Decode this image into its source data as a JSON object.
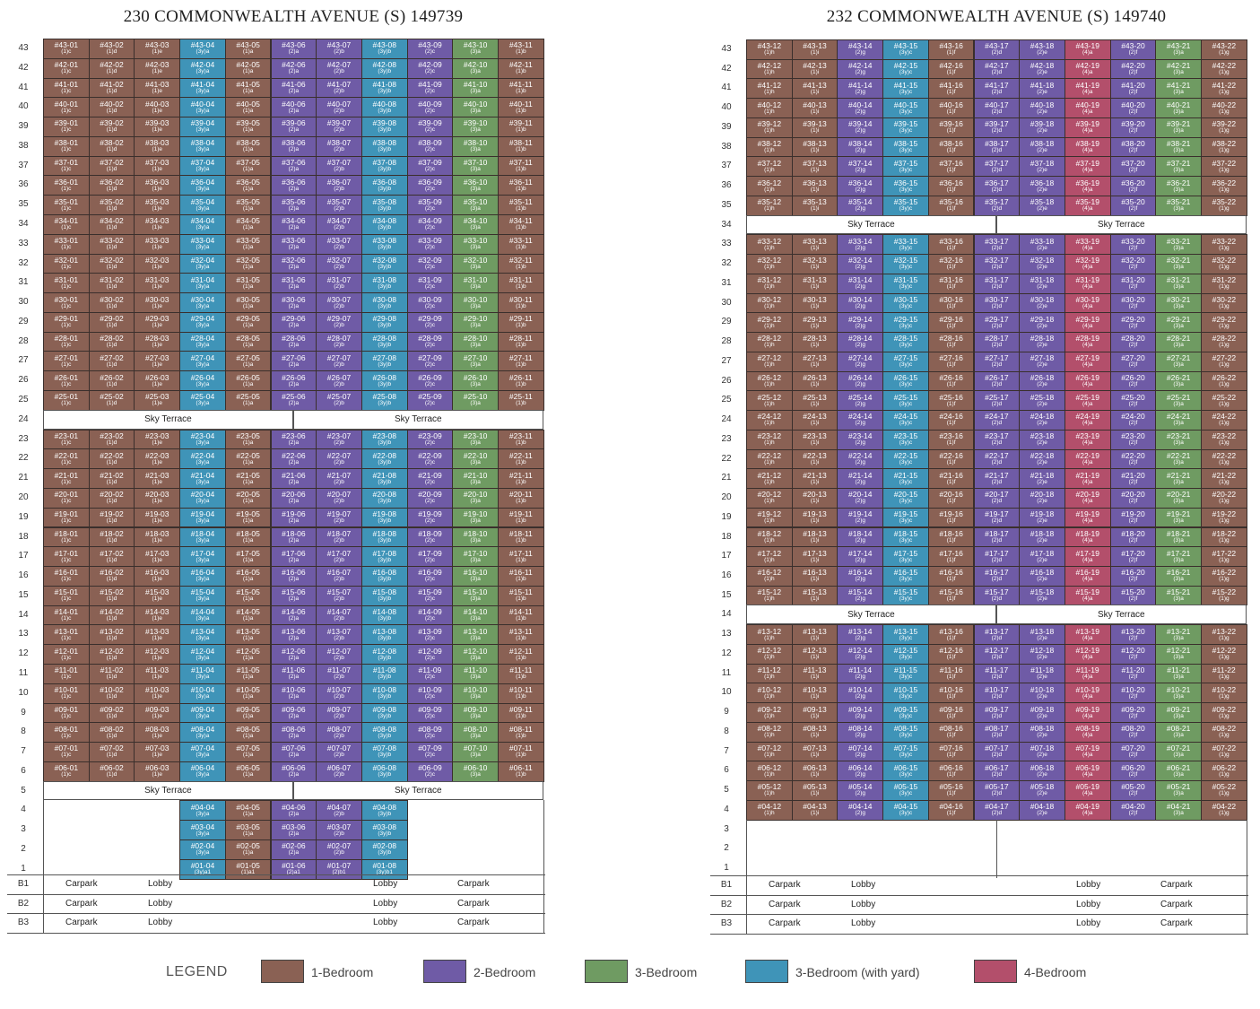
{
  "blocks": [
    {
      "id": "b230",
      "title": "230 COMMONWEALTH AVENUE (S) 149739",
      "stacks": [
        {
          "unit": "01",
          "type": "(1)c",
          "cls": "t1"
        },
        {
          "unit": "02",
          "type": "(1)d",
          "cls": "t1"
        },
        {
          "unit": "03",
          "type": "(1)e",
          "cls": "t1"
        },
        {
          "unit": "04",
          "type": "(3y)a",
          "cls": "t3y"
        },
        {
          "unit": "05",
          "type": "(1)a",
          "cls": "t1"
        },
        {
          "unit": "06",
          "type": "(2)a",
          "cls": "t2"
        },
        {
          "unit": "07",
          "type": "(2)b",
          "cls": "t2"
        },
        {
          "unit": "08",
          "type": "(3y)b",
          "cls": "t3y"
        },
        {
          "unit": "09",
          "type": "(2)c",
          "cls": "t2"
        },
        {
          "unit": "10",
          "type": "(3)a",
          "cls": "t3"
        },
        {
          "unit": "11",
          "type": "(1)b",
          "cls": "t1"
        }
      ],
      "sky_terrace_label": "Sky Terrace",
      "low_units": [
        {
          "floor": 4,
          "stack": 3,
          "label": "#04-04",
          "type": "(3y)a",
          "cls": "t3y"
        },
        {
          "floor": 4,
          "stack": 4,
          "label": "#04-05",
          "type": "(1)a",
          "cls": "t1"
        },
        {
          "floor": 4,
          "stack": 5,
          "label": "#04-06",
          "type": "(2)a",
          "cls": "t2"
        },
        {
          "floor": 4,
          "stack": 6,
          "label": "#04-07",
          "type": "(2)b",
          "cls": "t2"
        },
        {
          "floor": 4,
          "stack": 7,
          "label": "#04-08",
          "type": "(3y)b",
          "cls": "t3y"
        },
        {
          "floor": 3,
          "stack": 3,
          "label": "#03-04",
          "type": "(3y)a",
          "cls": "t3y"
        },
        {
          "floor": 3,
          "stack": 4,
          "label": "#03-05",
          "type": "(1)a",
          "cls": "t1"
        },
        {
          "floor": 3,
          "stack": 5,
          "label": "#03-06",
          "type": "(2)a",
          "cls": "t2"
        },
        {
          "floor": 3,
          "stack": 6,
          "label": "#03-07",
          "type": "(2)b",
          "cls": "t2"
        },
        {
          "floor": 3,
          "stack": 7,
          "label": "#03-08",
          "type": "(3y)b",
          "cls": "t3y"
        },
        {
          "floor": 2,
          "stack": 3,
          "label": "#02-04",
          "type": "(3y)a",
          "cls": "t3y"
        },
        {
          "floor": 2,
          "stack": 4,
          "label": "#02-05",
          "type": "(1)a",
          "cls": "t1"
        },
        {
          "floor": 2,
          "stack": 5,
          "label": "#02-06",
          "type": "(2)a",
          "cls": "t2"
        },
        {
          "floor": 2,
          "stack": 6,
          "label": "#02-07",
          "type": "(2)b",
          "cls": "t2"
        },
        {
          "floor": 2,
          "stack": 7,
          "label": "#02-08",
          "type": "(3y)b",
          "cls": "t3y"
        },
        {
          "floor": 1,
          "stack": 3,
          "label": "#01-04",
          "type": "(3y)a1",
          "cls": "t3y"
        },
        {
          "floor": 1,
          "stack": 4,
          "label": "#01-05",
          "type": "(1)a1",
          "cls": "t1"
        },
        {
          "floor": 1,
          "stack": 5,
          "label": "#01-06",
          "type": "(2)a1",
          "cls": "t2"
        },
        {
          "floor": 1,
          "stack": 6,
          "label": "#01-07",
          "type": "(2)b1",
          "cls": "t2"
        },
        {
          "floor": 1,
          "stack": 7,
          "label": "#01-08",
          "type": "(3y)b1",
          "cls": "t3y"
        }
      ],
      "basement": [
        {
          "level": "B1",
          "items": [
            "Carpark",
            "Lobby",
            "Lobby",
            "Carpark"
          ]
        },
        {
          "level": "B2",
          "items": [
            "Carpark",
            "Lobby",
            "Lobby",
            "Carpark"
          ]
        },
        {
          "level": "B3",
          "items": [
            "Carpark",
            "Lobby",
            "Lobby",
            "Carpark"
          ]
        }
      ]
    },
    {
      "id": "b232",
      "title": "232 COMMONWEALTH AVENUE (S) 149740",
      "stacks": [
        {
          "unit": "12",
          "type": "(1)h",
          "cls": "t1"
        },
        {
          "unit": "13",
          "type": "(1)i",
          "cls": "t1"
        },
        {
          "unit": "14",
          "type": "(2)g",
          "cls": "t2"
        },
        {
          "unit": "15",
          "type": "(3y)c",
          "cls": "t3y"
        },
        {
          "unit": "16",
          "type": "(1)f",
          "cls": "t1"
        },
        {
          "unit": "17",
          "type": "(2)d",
          "cls": "t2"
        },
        {
          "unit": "18",
          "type": "(2)e",
          "cls": "t2"
        },
        {
          "unit": "19",
          "type": "(4)a",
          "cls": "t4"
        },
        {
          "unit": "20",
          "type": "(2)f",
          "cls": "t2"
        },
        {
          "unit": "21",
          "type": "(3)a",
          "cls": "t3"
        },
        {
          "unit": "22",
          "type": "(1)g",
          "cls": "t1"
        }
      ],
      "sky_terrace_label": "Sky Terrace",
      "basement": [
        {
          "level": "B1",
          "items": [
            "Carpark",
            "Lobby",
            "Lobby",
            "Carpark"
          ]
        },
        {
          "level": "B2",
          "items": [
            "Carpark",
            "Lobby",
            "Lobby",
            "Carpark"
          ]
        },
        {
          "level": "B3",
          "items": [
            "Carpark",
            "Lobby",
            "Lobby",
            "Carpark"
          ]
        }
      ]
    }
  ],
  "legend": {
    "title": "LEGEND",
    "items": [
      {
        "label": "1-Bedroom",
        "color": "#8a6154"
      },
      {
        "label": "2-Bedroom",
        "color": "#6f5ba6"
      },
      {
        "label": "3-Bedroom",
        "color": "#6f9b62"
      },
      {
        "label": "3-Bedroom (with yard)",
        "color": "#3f94b8"
      },
      {
        "label": "4-Bedroom",
        "color": "#b34f6b"
      }
    ]
  }
}
